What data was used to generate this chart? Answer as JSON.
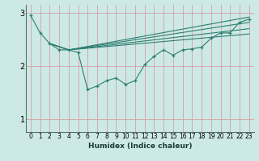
{
  "xlabel": "Humidex (Indice chaleur)",
  "bg_color": "#cce9e6",
  "grid_color": "#b0d8d4",
  "line_color": "#2e7d70",
  "xlim": [
    -0.5,
    23.5
  ],
  "ylim": [
    0.75,
    3.15
  ],
  "yticks": [
    1,
    2,
    3
  ],
  "xticks": [
    0,
    1,
    2,
    3,
    4,
    5,
    6,
    7,
    8,
    9,
    10,
    11,
    12,
    13,
    14,
    15,
    16,
    17,
    18,
    19,
    20,
    21,
    22,
    23
  ],
  "main_x": [
    0,
    1,
    2,
    3,
    4,
    5,
    6,
    7,
    8,
    9,
    10,
    11,
    12,
    13,
    14,
    15,
    16,
    17,
    18,
    19,
    20,
    21,
    22,
    23
  ],
  "main_y": [
    2.95,
    2.62,
    2.42,
    2.3,
    2.3,
    2.25,
    1.55,
    1.62,
    1.72,
    1.77,
    1.65,
    1.72,
    2.02,
    2.18,
    2.3,
    2.2,
    2.3,
    2.32,
    2.35,
    2.52,
    2.62,
    2.62,
    2.82,
    2.88
  ],
  "fan_lines": [
    {
      "x": [
        2,
        4,
        23
      ],
      "y": [
        2.42,
        2.3,
        2.6
      ]
    },
    {
      "x": [
        2,
        4,
        23
      ],
      "y": [
        2.42,
        2.3,
        2.7
      ]
    },
    {
      "x": [
        2,
        4,
        23
      ],
      "y": [
        2.42,
        2.3,
        2.82
      ]
    },
    {
      "x": [
        2,
        4,
        23
      ],
      "y": [
        2.42,
        2.3,
        2.92
      ]
    }
  ]
}
